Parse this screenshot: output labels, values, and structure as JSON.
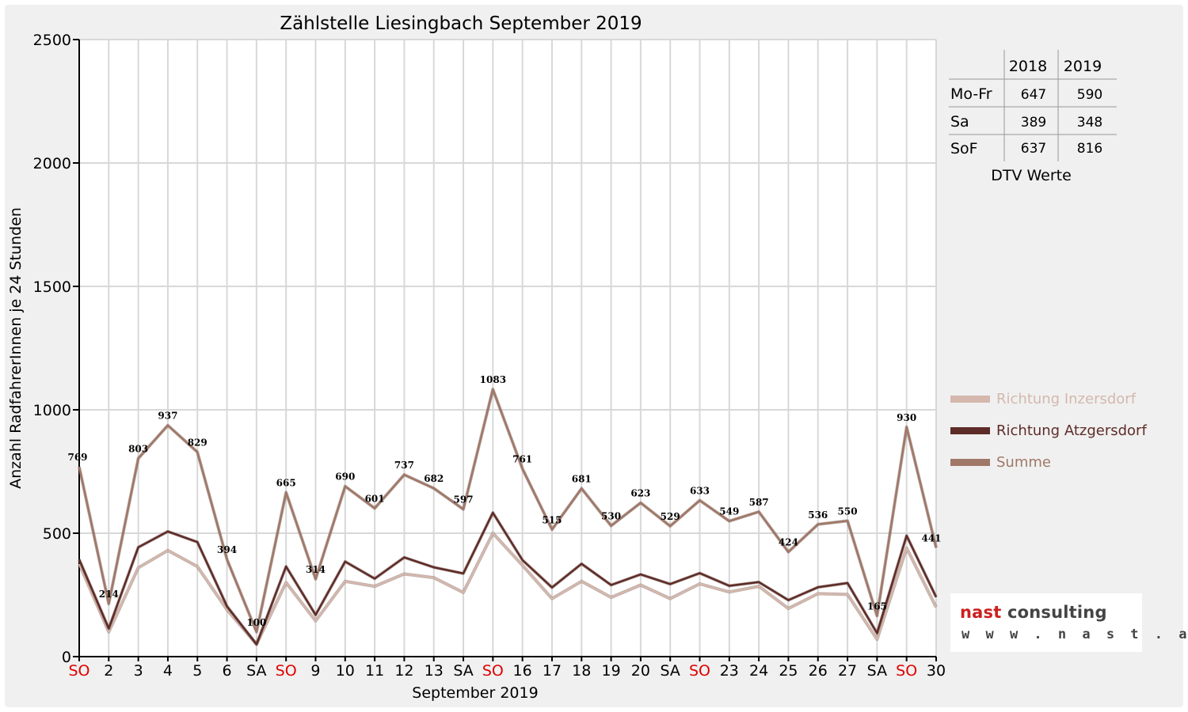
{
  "chart_data": {
    "type": "line",
    "title": "Zählstelle Liesingbach September 2019",
    "xlabel": "September 2019",
    "ylabel": "Anzahl RadfahrerInnen je 24 Stunden",
    "ylim": [
      0,
      2500
    ],
    "yticks": [
      0,
      500,
      1000,
      1500,
      2000,
      2500
    ],
    "grid": true,
    "legend_position": "right",
    "categories": [
      "SO",
      "2",
      "3",
      "4",
      "5",
      "6",
      "SA",
      "SO",
      "9",
      "10",
      "11",
      "12",
      "13",
      "SA",
      "SO",
      "16",
      "17",
      "18",
      "19",
      "20",
      "SA",
      "SO",
      "23",
      "24",
      "25",
      "26",
      "27",
      "SA",
      "SO",
      "30"
    ],
    "category_colors": [
      "#e00000",
      "#000000",
      "#000000",
      "#000000",
      "#000000",
      "#000000",
      "#000000",
      "#e00000",
      "#000000",
      "#000000",
      "#000000",
      "#000000",
      "#000000",
      "#000000",
      "#e00000",
      "#000000",
      "#000000",
      "#000000",
      "#000000",
      "#000000",
      "#000000",
      "#e00000",
      "#000000",
      "#000000",
      "#000000",
      "#000000",
      "#000000",
      "#000000",
      "#e00000",
      "#000000"
    ],
    "series": [
      {
        "name": "Richtung Inzersdorf",
        "color": "#d4b8ad",
        "values": [
          375,
          100,
          360,
          430,
          365,
          190,
          50,
          300,
          145,
          305,
          285,
          335,
          320,
          260,
          500,
          370,
          235,
          305,
          240,
          290,
          235,
          295,
          262,
          285,
          195,
          255,
          252,
          70,
          440,
          200
        ]
      },
      {
        "name": "Richtung Atzgersdorf",
        "color": "#5e2c28",
        "values": [
          394,
          114,
          443,
          507,
          464,
          204,
          50,
          365,
          169,
          385,
          316,
          402,
          362,
          337,
          583,
          391,
          280,
          376,
          290,
          333,
          294,
          338,
          287,
          302,
          229,
          281,
          298,
          95,
          490,
          241
        ]
      },
      {
        "name": "Summe",
        "color": "#a07868",
        "values": [
          769,
          214,
          803,
          937,
          829,
          394,
          100,
          665,
          314,
          690,
          601,
          737,
          682,
          597,
          1083,
          761,
          515,
          681,
          530,
          623,
          529,
          633,
          549,
          587,
          424,
          536,
          550,
          165,
          930,
          441
        ],
        "data_labels": [
          "769",
          "214",
          "803",
          "937",
          "829",
          "394",
          "100",
          "665",
          "314",
          "690",
          "601",
          "737",
          "682",
          "597",
          "1083",
          "761",
          "515",
          "681",
          "530",
          "623",
          "529",
          "633",
          "549",
          "587",
          "424",
          "536",
          "550",
          "165",
          "930",
          "441"
        ]
      }
    ]
  },
  "dtv_table": {
    "caption": "DTV Werte",
    "years": [
      "2018",
      "2019"
    ],
    "rows": [
      {
        "label": "Mo-Fr",
        "v2018": "647",
        "v2019": "590"
      },
      {
        "label": "Sa",
        "v2018": "389",
        "v2019": "348"
      },
      {
        "label": "SoF",
        "v2018": "637",
        "v2019": "816"
      }
    ]
  },
  "logo": {
    "brand": "nast",
    "rest": " consulting",
    "url": "w w w . n a s t . a t"
  }
}
